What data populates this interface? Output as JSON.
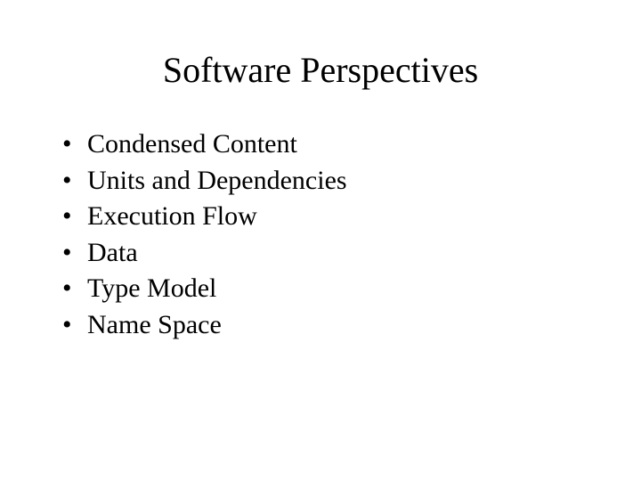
{
  "slide": {
    "title": "Software Perspectives",
    "title_fontsize": 40,
    "body_fontsize": 30,
    "background_color": "#ffffff",
    "text_color": "#000000",
    "font_family": "Times New Roman",
    "bullets": [
      "Condensed Content",
      "Units and Dependencies",
      "Execution Flow",
      "Data",
      "Type Model",
      "Name Space"
    ]
  }
}
